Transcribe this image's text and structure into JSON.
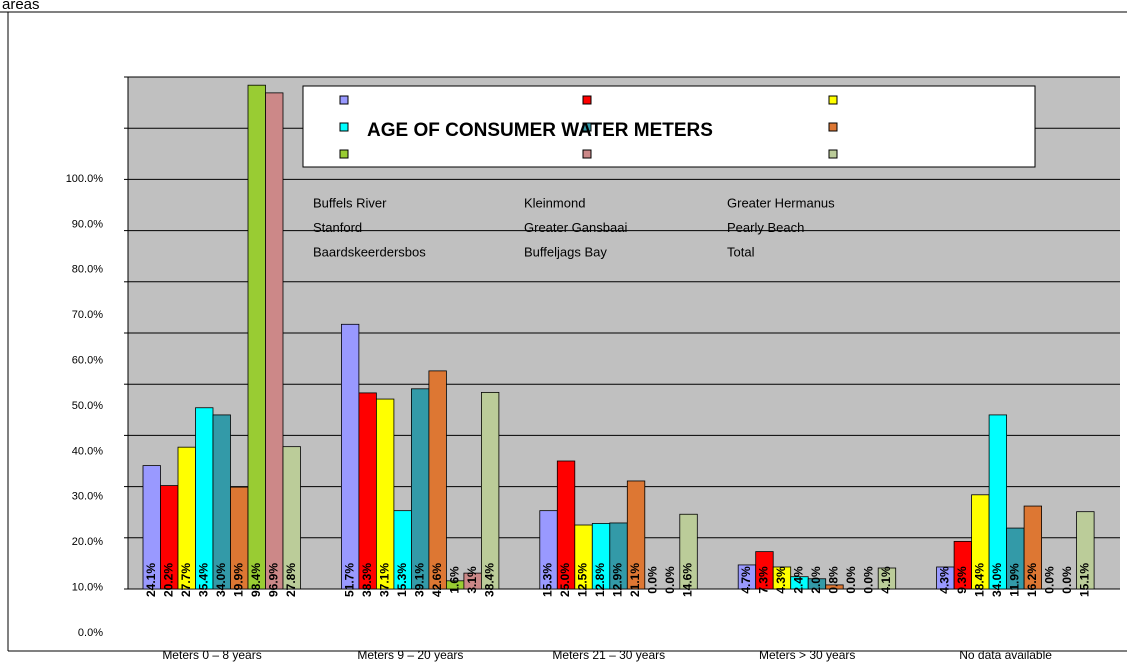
{
  "chart_data": {
    "type": "bar",
    "title": "AGE OF CONSUMER WATER METERS",
    "subtitle": "areas",
    "categories": [
      "Meters 0 – 8 years",
      "Meters 9 – 20 years",
      "Meters 21 – 30 years",
      "Meters > 30 years",
      "No data available"
    ],
    "ylim": [
      0,
      100
    ],
    "yticks": [
      {
        "value": 0,
        "label": "0.0%"
      },
      {
        "value": 10,
        "label": "10.0%"
      },
      {
        "value": 20,
        "label": "20.0%"
      },
      {
        "value": 30,
        "label": "30.0%"
      },
      {
        "value": 40,
        "label": "40.0%"
      },
      {
        "value": 50,
        "label": "50.0%"
      },
      {
        "value": 60,
        "label": "60.0%"
      },
      {
        "value": 70,
        "label": "70.0%"
      },
      {
        "value": 80,
        "label": "80.0%"
      },
      {
        "value": 90,
        "label": "90.0%"
      },
      {
        "value": 100,
        "label": "100.0%"
      }
    ],
    "grid": true,
    "series": [
      {
        "name": "Buffels River",
        "color": "#9999ff",
        "values": [
          24.1,
          51.7,
          15.3,
          4.7,
          4.3
        ],
        "value_labels": [
          "24.1%",
          "51.7%",
          "15.3%",
          "4.7%",
          "4.3%"
        ]
      },
      {
        "name": "Kleinmond",
        "color": "#ff0000",
        "values": [
          20.2,
          38.3,
          25.0,
          7.3,
          9.3
        ],
        "value_labels": [
          "20.2%",
          "38.3%",
          "25.0%",
          "7.3%",
          "9.3%"
        ]
      },
      {
        "name": "Greater Hermanus",
        "color": "#ffff00",
        "values": [
          27.7,
          37.1,
          12.5,
          4.3,
          18.4
        ],
        "value_labels": [
          "27.7%",
          "37.1%",
          "12.5%",
          "4.3%",
          "18.4%"
        ]
      },
      {
        "name": "Stanford",
        "color": "#00ffff",
        "values": [
          35.4,
          15.3,
          12.8,
          2.4,
          34.0
        ],
        "value_labels": [
          "35.4%",
          "15.3%",
          "12.8%",
          "2.4%",
          "34.0%"
        ]
      },
      {
        "name": "Greater Gansbaai",
        "color": "#339aa8",
        "values": [
          34.0,
          39.1,
          12.9,
          2.0,
          11.9
        ],
        "value_labels": [
          "34.0%",
          "39.1%",
          "12.9%",
          "2.0%",
          "11.9%"
        ]
      },
      {
        "name": "Pearly Beach",
        "color": "#dd7733",
        "values": [
          19.9,
          42.6,
          21.1,
          0.8,
          16.2
        ],
        "value_labels": [
          "19.9%",
          "42.6%",
          "21.1%",
          "0.8%",
          "16.2%"
        ]
      },
      {
        "name": "Baardskeerdersbos",
        "color": "#99cc33",
        "values": [
          98.4,
          1.6,
          0.0,
          0.0,
          0.0
        ],
        "value_labels": [
          "98.4%",
          "1.6%",
          "0.0%",
          "0.0%",
          "0.0%"
        ]
      },
      {
        "name": "Buffeljags Bay",
        "color": "#cc8888",
        "values": [
          96.9,
          3.1,
          0.0,
          0.0,
          0.0
        ],
        "value_labels": [
          "96.9%",
          "3.1%",
          "0.0%",
          "0.0%",
          "0.0%"
        ]
      },
      {
        "name": "Total",
        "color": "#bbcc99",
        "values": [
          27.8,
          38.4,
          14.6,
          4.1,
          15.1
        ],
        "value_labels": [
          "27.8%",
          "38.4%",
          "14.6%",
          "4.1%",
          "15.1%"
        ]
      }
    ]
  }
}
